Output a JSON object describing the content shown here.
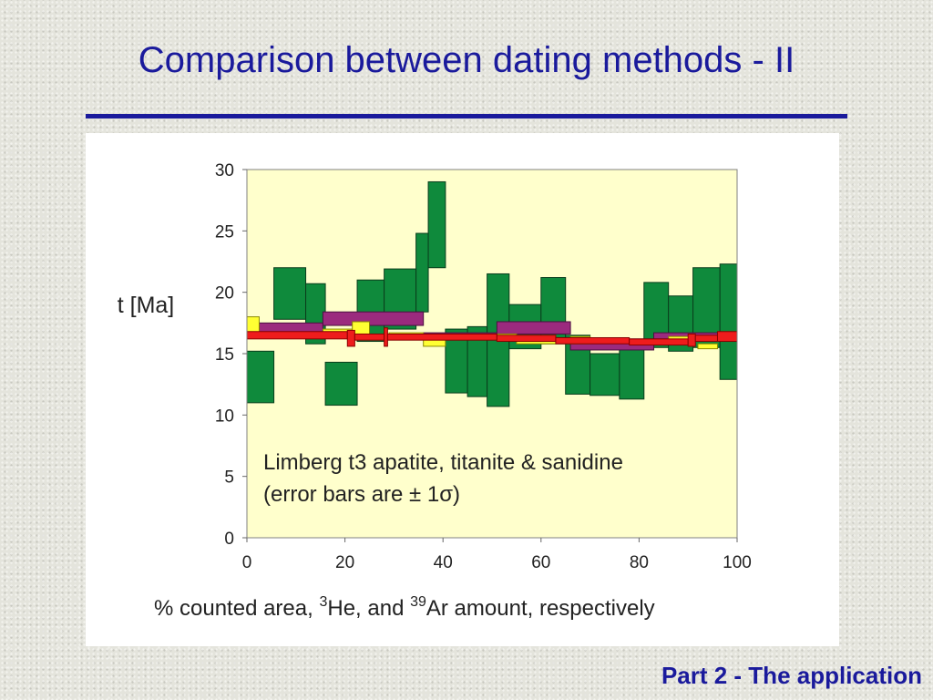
{
  "slide": {
    "title": "Comparison between dating methods - II",
    "footer": "Part 2 - The application"
  },
  "chart_data": {
    "type": "bar",
    "subtype": "age spectrum (stacked step boxes with ±1σ error)",
    "ylabel": "t [Ma]",
    "xlabel_parts": {
      "a": "% counted area, ",
      "sup1": "3",
      "b": "He, and ",
      "sup2": "39",
      "c": "Ar amount, respectively"
    },
    "annotation_line1": "Limberg t3 apatite, titanite & sanidine",
    "annotation_line2": "(error bars are ± 1σ)",
    "xlim": [
      0,
      100
    ],
    "ylim": [
      0,
      30
    ],
    "xticks": [
      0,
      20,
      40,
      60,
      80,
      100
    ],
    "yticks": [
      0,
      5,
      10,
      15,
      20,
      25,
      30
    ],
    "grid": false,
    "plot_background": "#ffffcc",
    "colors": {
      "apatite": "#0f8a3c",
      "titanite": "#9b2a7e",
      "sanidine": "#ee1c1c",
      "sanidine_fill": "#ffff33"
    },
    "series": [
      {
        "name": "",
        "boxes": [
          {
            "x0": 0,
            "x1": 5.5,
            "lo": 11.0,
            "hi": 15.2
          },
          {
            "x0": 5.5,
            "x1": 12,
            "lo": 17.8,
            "hi": 22.0
          },
          {
            "x0": 12,
            "x1": 16,
            "lo": 15.8,
            "hi": 20.7
          },
          {
            "x0": 16,
            "x1": 22.5,
            "lo": 10.8,
            "hi": 14.3
          },
          {
            "x0": 22.5,
            "x1": 28,
            "lo": 16.0,
            "hi": 21.0
          },
          {
            "x0": 28,
            "x1": 34.5,
            "lo": 17.0,
            "hi": 21.9
          },
          {
            "x0": 34.5,
            "x1": 37,
            "lo": 18.4,
            "hi": 24.8
          },
          {
            "x0": 37,
            "x1": 40.5,
            "lo": 22.0,
            "hi": 29.0
          },
          {
            "x0": 40.5,
            "x1": 45,
            "lo": 11.8,
            "hi": 17.0
          },
          {
            "x0": 45,
            "x1": 49,
            "lo": 11.5,
            "hi": 17.2
          },
          {
            "x0": 49,
            "x1": 53.5,
            "lo": 10.7,
            "hi": 21.5
          },
          {
            "x0": 53.5,
            "x1": 60,
            "lo": 15.4,
            "hi": 19.0
          },
          {
            "x0": 60,
            "x1": 65,
            "lo": 15.8,
            "hi": 21.2
          },
          {
            "x0": 65,
            "x1": 70,
            "lo": 11.7,
            "hi": 16.5
          },
          {
            "x0": 70,
            "x1": 76,
            "lo": 11.6,
            "hi": 15.0
          },
          {
            "x0": 76,
            "x1": 81,
            "lo": 11.3,
            "hi": 15.4
          },
          {
            "x0": 81,
            "x1": 86,
            "lo": 15.5,
            "hi": 20.8
          },
          {
            "x0": 86,
            "x1": 91,
            "lo": 15.2,
            "hi": 19.7
          },
          {
            "x0": 91,
            "x1": 96.5,
            "lo": 15.5,
            "hi": 22.0
          },
          {
            "x0": 96.5,
            "x1": 100,
            "lo": 12.9,
            "hi": 22.3
          }
        ]
      },
      {
        "name": "",
        "boxes": [
          {
            "x0": 0,
            "x1": 15.5,
            "lo": 16.5,
            "hi": 17.5
          },
          {
            "x0": 15.5,
            "x1": 36,
            "lo": 17.3,
            "hi": 18.4
          },
          {
            "x0": 36,
            "x1": 51,
            "lo": 16.2,
            "hi": 16.7
          },
          {
            "x0": 51,
            "x1": 66,
            "lo": 16.6,
            "hi": 17.6
          },
          {
            "x0": 66,
            "x1": 83,
            "lo": 15.3,
            "hi": 16.2
          },
          {
            "x0": 83,
            "x1": 100,
            "lo": 16.2,
            "hi": 16.7
          }
        ]
      },
      {
        "name": "",
        "boxes": [
          {
            "x0": 0,
            "x1": 2.5,
            "lo": 16.3,
            "hi": 18.0
          },
          {
            "x0": 15.5,
            "x1": 21.5,
            "lo": 16.5,
            "hi": 17.0
          },
          {
            "x0": 21.5,
            "x1": 25,
            "lo": 16.5,
            "hi": 17.6
          },
          {
            "x0": 29,
            "x1": 36,
            "lo": 16.2,
            "hi": 16.7
          },
          {
            "x0": 36,
            "x1": 40.5,
            "lo": 15.6,
            "hi": 16.5
          },
          {
            "x0": 51,
            "x1": 55,
            "lo": 16.3,
            "hi": 16.6
          },
          {
            "x0": 55,
            "x1": 63,
            "lo": 15.8,
            "hi": 16.5
          },
          {
            "x0": 66,
            "x1": 70,
            "lo": 15.8,
            "hi": 16.4
          },
          {
            "x0": 86,
            "x1": 92,
            "lo": 16.0,
            "hi": 16.4
          },
          {
            "x0": 92,
            "x1": 96,
            "lo": 15.4,
            "hi": 15.8
          }
        ]
      },
      {
        "name": "",
        "boxes": [
          {
            "x0": 0,
            "x1": 20.5,
            "lo": 16.2,
            "hi": 16.8
          },
          {
            "x0": 20.5,
            "x1": 22,
            "lo": 15.6,
            "hi": 16.9
          },
          {
            "x0": 22,
            "x1": 28,
            "lo": 16.1,
            "hi": 16.6
          },
          {
            "x0": 28,
            "x1": 28.7,
            "lo": 15.6,
            "hi": 17.1
          },
          {
            "x0": 28.7,
            "x1": 51,
            "lo": 16.1,
            "hi": 16.6
          },
          {
            "x0": 51,
            "x1": 63,
            "lo": 16.0,
            "hi": 16.5
          },
          {
            "x0": 63,
            "x1": 78,
            "lo": 15.8,
            "hi": 16.3
          },
          {
            "x0": 78,
            "x1": 90,
            "lo": 15.7,
            "hi": 16.2
          },
          {
            "x0": 90,
            "x1": 91.5,
            "lo": 15.6,
            "hi": 16.6
          },
          {
            "x0": 91.5,
            "x1": 96,
            "lo": 16.0,
            "hi": 16.5
          },
          {
            "x0": 96,
            "x1": 100,
            "lo": 16.0,
            "hi": 16.8
          }
        ]
      }
    ]
  }
}
